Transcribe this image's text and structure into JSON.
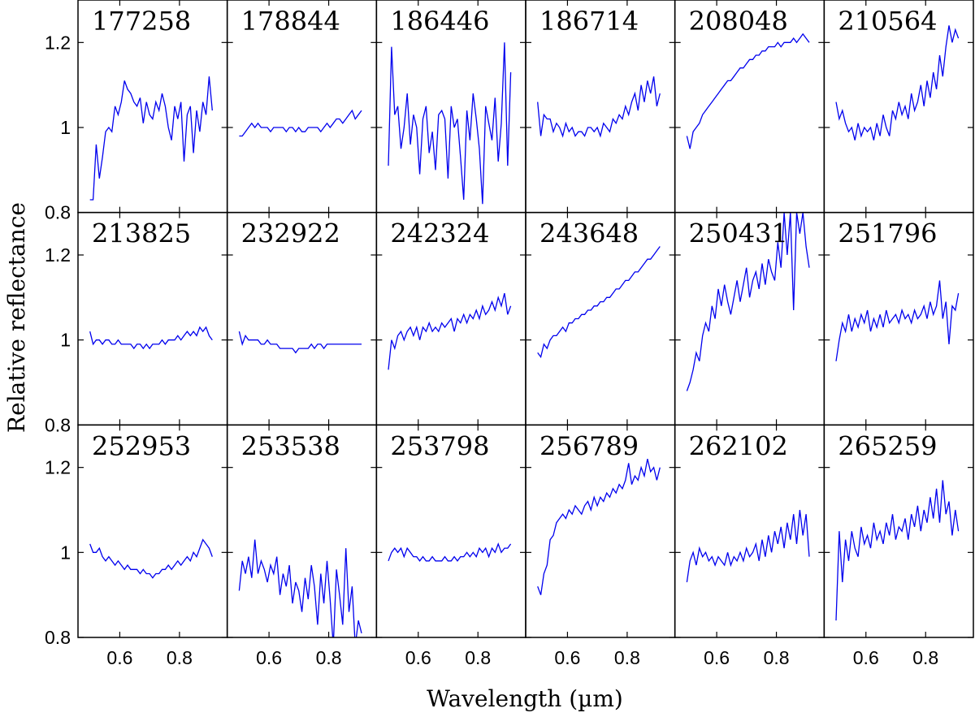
{
  "figure": {
    "xlabel": "Wavelength (µm)",
    "ylabel": "Relative reflectance",
    "line_color": "#0000ee",
    "axis_color": "#000000"
  },
  "chart_data": {
    "type": "line",
    "layout": "grid",
    "rows": 3,
    "cols": 6,
    "xlim": [
      0.46,
      0.96
    ],
    "ylim": [
      0.8,
      1.3
    ],
    "xticks": [
      0.6,
      0.8
    ],
    "xtick_labels": [
      "0.6",
      "0.8"
    ],
    "yticks": [
      0.8,
      1.0,
      1.2
    ],
    "ytick_labels": [
      "0.8",
      "1",
      "1.2"
    ],
    "xlabel": "Wavelength (µm)",
    "ylabel": "Relative reflectance",
    "x_start": 0.5,
    "x_end": 0.91,
    "panels": [
      {
        "label": "177258",
        "y": [
          0.83,
          0.83,
          0.96,
          0.88,
          0.93,
          0.99,
          1.0,
          0.99,
          1.05,
          1.03,
          1.06,
          1.11,
          1.09,
          1.08,
          1.06,
          1.05,
          1.07,
          1.01,
          1.06,
          1.03,
          1.02,
          1.06,
          1.04,
          1.08,
          1.05,
          1.0,
          0.97,
          1.05,
          1.02,
          1.06,
          0.92,
          1.03,
          1.05,
          0.94,
          1.04,
          0.99,
          1.06,
          1.03,
          1.12,
          1.04
        ]
      },
      {
        "label": "178844",
        "y": [
          0.98,
          0.98,
          0.99,
          1.0,
          1.01,
          1.0,
          1.01,
          1.0,
          1.0,
          1.0,
          0.99,
          1.0,
          1.0,
          1.0,
          1.0,
          0.99,
          1.0,
          1.0,
          0.99,
          1.0,
          0.99,
          0.99,
          1.0,
          1.0,
          1.0,
          1.0,
          0.99,
          1.0,
          1.01,
          1.0,
          1.01,
          1.02,
          1.02,
          1.01,
          1.02,
          1.03,
          1.04,
          1.02,
          1.03,
          1.04
        ]
      },
      {
        "label": "186446",
        "y": [
          0.91,
          1.19,
          1.03,
          1.05,
          0.95,
          1.0,
          1.08,
          0.96,
          1.03,
          1.0,
          0.89,
          1.02,
          1.05,
          0.94,
          0.99,
          0.9,
          1.03,
          1.04,
          1.02,
          0.88,
          1.05,
          1.0,
          1.02,
          0.93,
          0.83,
          1.04,
          0.97,
          1.08,
          1.02,
          0.95,
          0.82,
          1.05,
          1.01,
          0.97,
          1.07,
          0.92,
          1.01,
          1.2,
          0.91,
          1.13
        ]
      },
      {
        "label": "186714",
        "y": [
          1.06,
          0.98,
          1.03,
          1.02,
          1.02,
          0.99,
          1.01,
          1.0,
          0.98,
          1.01,
          0.99,
          1.0,
          0.98,
          0.99,
          0.99,
          0.98,
          1.0,
          1.0,
          0.99,
          1.0,
          0.98,
          1.01,
          1.0,
          0.99,
          1.02,
          1.01,
          1.03,
          1.02,
          1.05,
          1.03,
          1.06,
          1.08,
          1.04,
          1.1,
          1.06,
          1.11,
          1.08,
          1.12,
          1.05,
          1.08
        ]
      },
      {
        "label": "208048",
        "y": [
          0.98,
          0.95,
          0.99,
          1.0,
          1.01,
          1.03,
          1.04,
          1.05,
          1.06,
          1.07,
          1.08,
          1.09,
          1.1,
          1.11,
          1.11,
          1.12,
          1.13,
          1.14,
          1.14,
          1.15,
          1.16,
          1.16,
          1.17,
          1.17,
          1.18,
          1.18,
          1.19,
          1.19,
          1.19,
          1.2,
          1.19,
          1.2,
          1.2,
          1.2,
          1.21,
          1.2,
          1.21,
          1.22,
          1.21,
          1.2
        ]
      },
      {
        "label": "210564",
        "y": [
          1.06,
          1.02,
          1.04,
          1.01,
          0.99,
          1.0,
          0.97,
          1.01,
          0.98,
          1.0,
          0.99,
          1.0,
          0.97,
          1.01,
          0.98,
          1.03,
          1.0,
          0.98,
          1.04,
          1.02,
          1.06,
          1.03,
          1.05,
          1.02,
          1.08,
          1.04,
          1.06,
          1.1,
          1.05,
          1.11,
          1.07,
          1.13,
          1.09,
          1.17,
          1.12,
          1.19,
          1.24,
          1.2,
          1.23,
          1.21
        ]
      },
      {
        "label": "213825",
        "y": [
          1.02,
          0.99,
          1.0,
          1.0,
          0.99,
          1.0,
          1.0,
          0.99,
          0.99,
          1.0,
          0.99,
          0.99,
          0.99,
          0.99,
          0.98,
          0.99,
          0.99,
          0.98,
          0.99,
          0.98,
          0.99,
          0.99,
          0.99,
          1.0,
          0.99,
          1.0,
          1.0,
          1.0,
          1.01,
          1.0,
          1.01,
          1.02,
          1.01,
          1.02,
          1.01,
          1.03,
          1.02,
          1.03,
          1.01,
          1.0
        ]
      },
      {
        "label": "232922",
        "y": [
          1.02,
          0.99,
          1.01,
          1.0,
          1.0,
          1.0,
          1.0,
          0.99,
          0.99,
          1.0,
          0.99,
          0.99,
          0.99,
          0.98,
          0.98,
          0.98,
          0.98,
          0.98,
          0.97,
          0.98,
          0.98,
          0.98,
          0.98,
          0.99,
          0.98,
          0.99,
          0.99,
          0.98,
          0.99,
          0.99,
          0.99,
          0.99,
          0.99,
          0.99,
          0.99,
          0.99,
          0.99,
          0.99,
          0.99,
          0.99
        ]
      },
      {
        "label": "242324",
        "y": [
          0.93,
          1.0,
          0.98,
          1.01,
          1.02,
          1.0,
          1.02,
          1.03,
          1.01,
          1.03,
          1.0,
          1.03,
          1.02,
          1.04,
          1.02,
          1.03,
          1.02,
          1.04,
          1.03,
          1.04,
          1.05,
          1.02,
          1.05,
          1.04,
          1.06,
          1.04,
          1.06,
          1.05,
          1.07,
          1.05,
          1.08,
          1.06,
          1.07,
          1.09,
          1.07,
          1.1,
          1.08,
          1.11,
          1.06,
          1.08
        ]
      },
      {
        "label": "243648",
        "y": [
          0.97,
          0.96,
          0.99,
          0.98,
          1.0,
          1.01,
          1.01,
          1.02,
          1.03,
          1.02,
          1.04,
          1.04,
          1.05,
          1.05,
          1.06,
          1.06,
          1.07,
          1.07,
          1.08,
          1.08,
          1.09,
          1.09,
          1.1,
          1.1,
          1.11,
          1.12,
          1.12,
          1.13,
          1.14,
          1.14,
          1.15,
          1.16,
          1.16,
          1.17,
          1.18,
          1.19,
          1.19,
          1.2,
          1.21,
          1.22
        ]
      },
      {
        "label": "250431",
        "y": [
          0.88,
          0.9,
          0.93,
          0.97,
          0.95,
          1.01,
          1.04,
          1.02,
          1.08,
          1.05,
          1.12,
          1.08,
          1.13,
          1.09,
          1.06,
          1.1,
          1.14,
          1.09,
          1.13,
          1.17,
          1.1,
          1.14,
          1.16,
          1.12,
          1.18,
          1.13,
          1.19,
          1.16,
          1.14,
          1.23,
          1.17,
          1.3,
          1.2,
          1.3,
          1.07,
          1.3,
          1.25,
          1.3,
          1.22,
          1.17
        ]
      },
      {
        "label": "251796",
        "y": [
          0.95,
          1.0,
          1.04,
          1.02,
          1.06,
          1.02,
          1.05,
          1.03,
          1.06,
          1.04,
          1.07,
          1.02,
          1.05,
          1.03,
          1.06,
          1.03,
          1.07,
          1.04,
          1.05,
          1.06,
          1.04,
          1.07,
          1.05,
          1.06,
          1.04,
          1.07,
          1.05,
          1.06,
          1.08,
          1.05,
          1.09,
          1.06,
          1.08,
          1.14,
          1.05,
          1.09,
          0.99,
          1.08,
          1.07,
          1.11
        ]
      },
      {
        "label": "252953",
        "y": [
          1.02,
          1.0,
          1.0,
          1.01,
          0.99,
          0.98,
          0.99,
          0.98,
          0.97,
          0.98,
          0.97,
          0.96,
          0.97,
          0.96,
          0.96,
          0.96,
          0.95,
          0.96,
          0.95,
          0.95,
          0.94,
          0.95,
          0.95,
          0.96,
          0.96,
          0.97,
          0.96,
          0.97,
          0.98,
          0.97,
          0.98,
          0.99,
          0.98,
          1.0,
          0.99,
          1.01,
          1.03,
          1.02,
          1.01,
          0.99
        ]
      },
      {
        "label": "253538",
        "y": [
          0.91,
          0.98,
          0.95,
          0.99,
          0.94,
          1.03,
          0.95,
          0.98,
          0.96,
          0.93,
          0.97,
          0.95,
          0.99,
          0.9,
          0.95,
          0.92,
          0.97,
          0.88,
          0.93,
          0.91,
          0.86,
          0.94,
          0.89,
          0.97,
          0.92,
          0.83,
          0.95,
          0.88,
          0.98,
          0.89,
          0.78,
          0.96,
          0.9,
          0.83,
          1.01,
          0.86,
          0.92,
          0.78,
          0.84,
          0.81
        ]
      },
      {
        "label": "253798",
        "y": [
          0.98,
          1.0,
          1.01,
          1.0,
          1.01,
          0.99,
          1.01,
          1.0,
          0.99,
          0.99,
          0.98,
          0.99,
          0.98,
          0.98,
          0.99,
          0.98,
          0.98,
          0.98,
          0.99,
          0.98,
          0.98,
          0.99,
          0.98,
          0.99,
          0.99,
          1.0,
          0.99,
          1.0,
          0.99,
          1.01,
          1.0,
          1.01,
          0.99,
          1.01,
          1.0,
          1.02,
          1.0,
          1.01,
          1.01,
          1.02
        ]
      },
      {
        "label": "256789",
        "y": [
          0.92,
          0.9,
          0.95,
          0.97,
          1.03,
          1.04,
          1.07,
          1.08,
          1.09,
          1.08,
          1.1,
          1.09,
          1.11,
          1.1,
          1.09,
          1.11,
          1.12,
          1.1,
          1.13,
          1.11,
          1.13,
          1.12,
          1.14,
          1.13,
          1.15,
          1.14,
          1.16,
          1.15,
          1.17,
          1.21,
          1.16,
          1.18,
          1.17,
          1.2,
          1.18,
          1.22,
          1.19,
          1.2,
          1.17,
          1.2
        ]
      },
      {
        "label": "262102",
        "y": [
          0.93,
          0.98,
          1.0,
          0.97,
          1.01,
          0.99,
          1.0,
          0.98,
          0.99,
          0.97,
          0.99,
          0.98,
          0.97,
          1.0,
          0.97,
          0.99,
          0.98,
          1.0,
          0.98,
          1.01,
          0.99,
          1.0,
          1.02,
          0.98,
          1.03,
          0.99,
          1.04,
          1.0,
          1.05,
          1.02,
          1.06,
          1.01,
          1.07,
          1.03,
          1.09,
          1.02,
          1.1,
          1.04,
          1.09,
          0.99
        ]
      },
      {
        "label": "265259",
        "y": [
          0.84,
          1.05,
          0.93,
          1.03,
          0.98,
          1.05,
          1.01,
          0.99,
          1.06,
          1.02,
          1.04,
          1.01,
          1.07,
          1.03,
          1.05,
          1.02,
          1.07,
          1.04,
          1.09,
          1.03,
          1.06,
          1.05,
          1.08,
          1.03,
          1.09,
          1.06,
          1.11,
          1.05,
          1.1,
          1.07,
          1.13,
          1.08,
          1.15,
          1.07,
          1.17,
          1.09,
          1.12,
          1.04,
          1.1,
          1.05
        ]
      }
    ]
  }
}
